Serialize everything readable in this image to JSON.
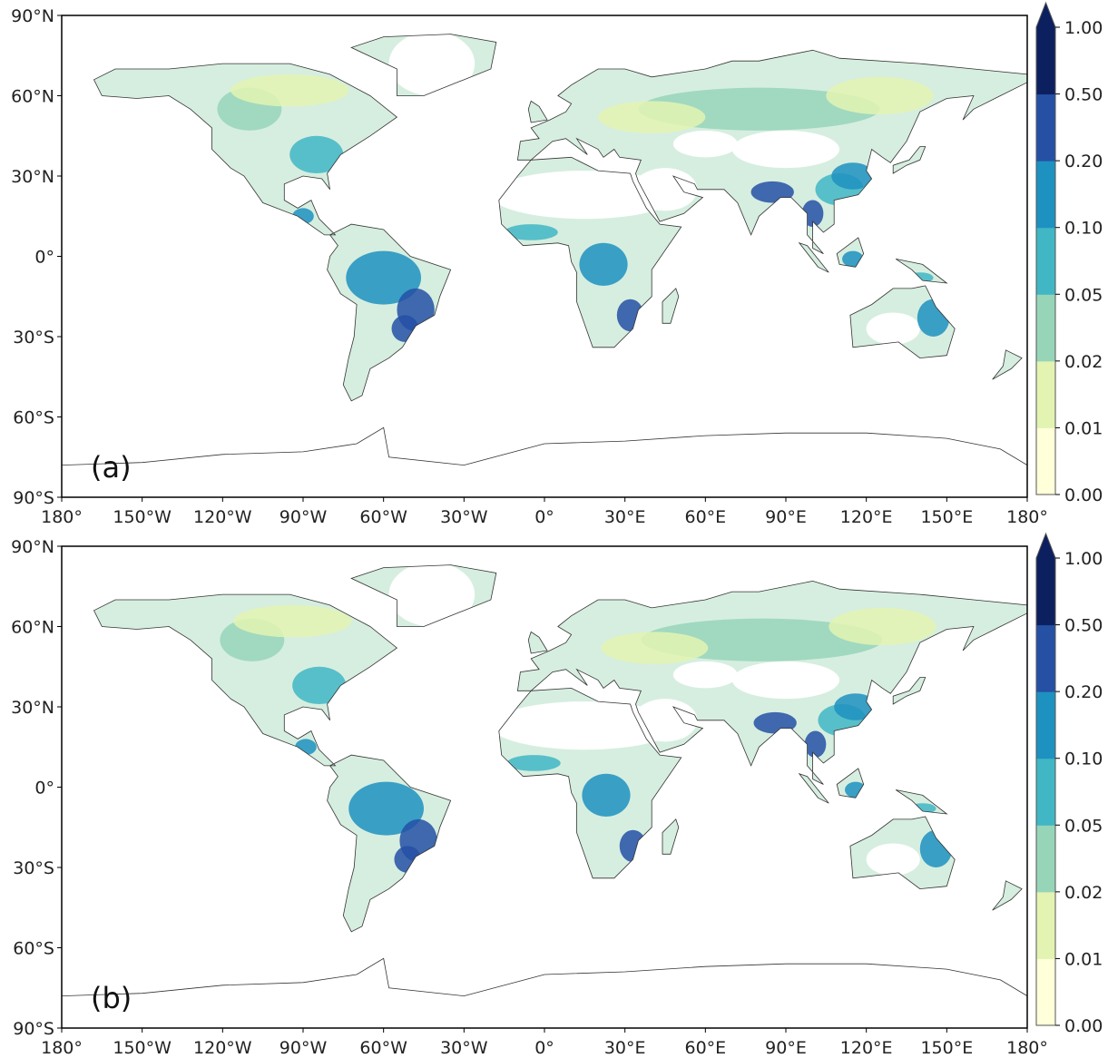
{
  "chart_data": {
    "type": "heatmap",
    "title": "",
    "panels": [
      {
        "label": "(a)"
      },
      {
        "label": "(b)"
      }
    ],
    "x_ticks": [
      "180°",
      "150°W",
      "120°W",
      "90°W",
      "60°W",
      "30°W",
      "0°",
      "30°E",
      "60°E",
      "90°E",
      "120°E",
      "150°E",
      "180°"
    ],
    "x_tick_values": [
      -180,
      -150,
      -120,
      -90,
      -60,
      -30,
      0,
      30,
      60,
      90,
      120,
      150,
      180
    ],
    "y_ticks": [
      "90°N",
      "60°N",
      "30°N",
      "0°",
      "30°S",
      "60°S",
      "90°S"
    ],
    "y_tick_values": [
      90,
      60,
      30,
      0,
      -30,
      -60,
      -90
    ],
    "xlim": [
      -180,
      180
    ],
    "ylim": [
      -90,
      90
    ],
    "colorbar": {
      "ticks": [
        "0.00",
        "0.01",
        "0.02",
        "0.05",
        "0.10",
        "0.20",
        "0.50",
        "1.00"
      ],
      "colors": [
        "#ffffd9",
        "#e3f3b1",
        "#97d5b8",
        "#41b6c4",
        "#1d91c0",
        "#2550a4",
        "#0c2060"
      ],
      "extend": "max",
      "placement": "right"
    },
    "hotspots": [
      "Amazon basin",
      "Southeast Brazil",
      "Congo basin",
      "Southeast Africa",
      "Eastern North America",
      "Central America",
      "India and Bangladesh",
      "Southern China and Southeast Asia",
      "Indonesia",
      "Eastern Australia"
    ]
  }
}
